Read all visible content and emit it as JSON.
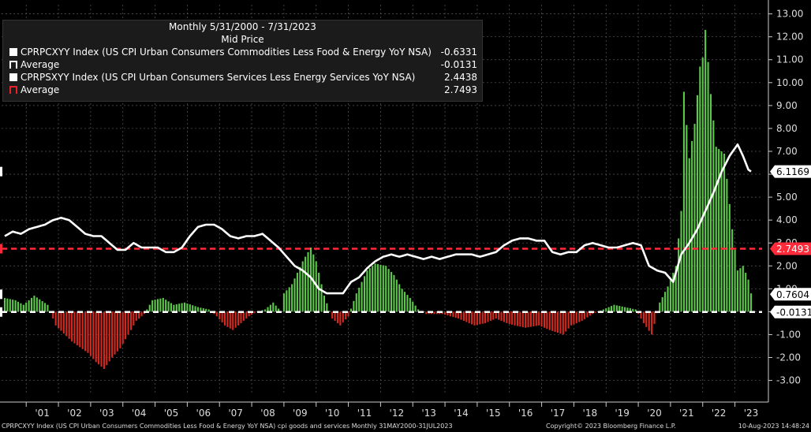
{
  "legend": {
    "header_line1": "Monthly 5/31/2000 - 7/31/2023",
    "header_line2": "Mid Price",
    "entries": [
      {
        "label": "CPRPCXYY Index (US CPI Urban Consumers Commodities Less Food & Energy YoY NSA)",
        "value": "-0.6331",
        "swatch": "solid-white"
      },
      {
        "label": "Average",
        "value": "-0.0131",
        "swatch": "dash-white"
      },
      {
        "label": "CPRPSXYY Index (US CPI Urban Consumers Services Less Energy Services YoY NSA)",
        "value": "2.4438",
        "swatch": "solid-white"
      },
      {
        "label": "Average",
        "value": "2.7493",
        "swatch": "dash-red"
      }
    ]
  },
  "footer": {
    "left": "CPRPCXYY Index (US CPI Urban Consumers Commodities Less Food & Energy YoY NSA) cpi goods and services  Monthly 31MAY2000-31JUL2023",
    "center": "Copyright© 2023 Bloomberg Finance L.P.",
    "right": "10-Aug-2023 14:48:24"
  },
  "colors": {
    "background": "#000000",
    "positive_bar": "#5cc94a",
    "negative_bar": "#d42a20",
    "services_line": "#ffffff",
    "services_avg": "#ff2a3a",
    "commodities_avg": "#ffffff",
    "grid": "#5a5a5a"
  },
  "chart_data": {
    "type": "bar",
    "x_range": [
      "2000-05",
      "2023-07"
    ],
    "ylim": [
      -3.6,
      13.4
    ],
    "grid": true,
    "y_ticks": [
      "13.00",
      "12.00",
      "11.00",
      "10.00",
      "9.00",
      "8.00",
      "7.00",
      "6.00",
      "5.00",
      "4.00",
      "3.00",
      "2.00",
      "1.00",
      "0.00",
      "-1.00",
      "-2.00",
      "-3.00"
    ],
    "y_tick_values": [
      13,
      12,
      11,
      10,
      9,
      8,
      7,
      6,
      5,
      4,
      3,
      2,
      1,
      0,
      -1,
      -2,
      -3
    ],
    "x_ticks": [
      "'01",
      "'02",
      "'03",
      "'04",
      "'05",
      "'06",
      "'07",
      "'08",
      "'09",
      "'10",
      "'11",
      "'12",
      "'13",
      "'14",
      "'15",
      "'16",
      "'17",
      "'18",
      "'19",
      "'20",
      "'21",
      "'22",
      "'23"
    ],
    "x_tick_years": [
      2001,
      2002,
      2003,
      2004,
      2005,
      2006,
      2007,
      2008,
      2009,
      2010,
      2011,
      2012,
      2013,
      2014,
      2015,
      2016,
      2017,
      2018,
      2019,
      2020,
      2021,
      2022,
      2023
    ],
    "series": [
      {
        "name": "CPRPCXYY Index (US CPI Urban Consumers Commodities Less Food & Energy YoY NSA)",
        "style": "bars",
        "anchors": [
          [
            "2000-05",
            0.6
          ],
          [
            "2000-09",
            0.5
          ],
          [
            "2000-12",
            0.3
          ],
          [
            "2001-04",
            0.7
          ],
          [
            "2001-09",
            0.3
          ],
          [
            "2001-12",
            -0.6
          ],
          [
            "2002-06",
            -1.3
          ],
          [
            "2002-12",
            -1.8
          ],
          [
            "2003-03",
            -2.2
          ],
          [
            "2003-06",
            -2.5
          ],
          [
            "2003-09",
            -2.0
          ],
          [
            "2003-12",
            -1.6
          ],
          [
            "2004-03",
            -1.0
          ],
          [
            "2004-06",
            -0.4
          ],
          [
            "2004-09",
            -0.1
          ],
          [
            "2004-12",
            0.5
          ],
          [
            "2005-04",
            0.6
          ],
          [
            "2005-08",
            0.3
          ],
          [
            "2005-12",
            0.4
          ],
          [
            "2006-05",
            0.2
          ],
          [
            "2006-09",
            0.1
          ],
          [
            "2006-12",
            -0.2
          ],
          [
            "2007-03",
            -0.6
          ],
          [
            "2007-06",
            -0.8
          ],
          [
            "2007-09",
            -0.5
          ],
          [
            "2007-12",
            -0.2
          ],
          [
            "2008-03",
            0.0
          ],
          [
            "2008-06",
            0.1
          ],
          [
            "2008-09",
            0.4
          ],
          [
            "2008-12",
            0.0
          ],
          [
            "2009-01",
            0.8
          ],
          [
            "2009-04",
            1.2
          ],
          [
            "2009-08",
            2.2
          ],
          [
            "2009-11",
            2.8
          ],
          [
            "2010-01",
            2.2
          ],
          [
            "2010-04",
            0.7
          ],
          [
            "2010-07",
            -0.3
          ],
          [
            "2010-10",
            -0.6
          ],
          [
            "2011-01",
            -0.2
          ],
          [
            "2011-04",
            0.8
          ],
          [
            "2011-08",
            1.8
          ],
          [
            "2011-11",
            2.1
          ],
          [
            "2012-03",
            2.0
          ],
          [
            "2012-06",
            1.6
          ],
          [
            "2012-09",
            1.0
          ],
          [
            "2012-12",
            0.6
          ],
          [
            "2013-03",
            0.1
          ],
          [
            "2013-06",
            -0.1
          ],
          [
            "2013-12",
            -0.1
          ],
          [
            "2014-06",
            -0.3
          ],
          [
            "2014-12",
            -0.6
          ],
          [
            "2015-04",
            -0.5
          ],
          [
            "2015-08",
            -0.3
          ],
          [
            "2015-12",
            -0.5
          ],
          [
            "2016-03",
            -0.6
          ],
          [
            "2016-07",
            -0.7
          ],
          [
            "2016-12",
            -0.6
          ],
          [
            "2017-04",
            -0.8
          ],
          [
            "2017-09",
            -1.0
          ],
          [
            "2017-12",
            -0.6
          ],
          [
            "2018-04",
            -0.4
          ],
          [
            "2018-08",
            -0.1
          ],
          [
            "2018-12",
            0.1
          ],
          [
            "2019-04",
            0.3
          ],
          [
            "2019-08",
            0.2
          ],
          [
            "2019-12",
            0.1
          ],
          [
            "2020-03",
            -0.5
          ],
          [
            "2020-06",
            -1.0
          ],
          [
            "2020-09",
            0.4
          ],
          [
            "2020-12",
            1.1
          ],
          [
            "2021-03",
            2.0
          ],
          [
            "2021-05",
            4.4
          ],
          [
            "2021-06",
            9.6
          ],
          [
            "2021-08",
            6.7
          ],
          [
            "2021-10",
            8.2
          ],
          [
            "2021-12",
            10.7
          ],
          [
            "2022-01",
            11.1
          ],
          [
            "2022-02",
            12.3
          ],
          [
            "2022-04",
            9.5
          ],
          [
            "2022-06",
            7.2
          ],
          [
            "2022-09",
            6.9
          ],
          [
            "2022-12",
            3.6
          ],
          [
            "2023-02",
            1.8
          ],
          [
            "2023-04",
            2.0
          ],
          [
            "2023-06",
            1.4
          ],
          [
            "2023-07",
            0.8
          ]
        ]
      },
      {
        "name": "CPRPSXYY Index (US CPI Urban Consumers Services Less Energy Services YoY NSA)",
        "style": "line",
        "anchors": [
          [
            "2000-05",
            3.3
          ],
          [
            "2000-08",
            3.5
          ],
          [
            "2000-11",
            3.4
          ],
          [
            "2001-02",
            3.6
          ],
          [
            "2001-05",
            3.7
          ],
          [
            "2001-08",
            3.8
          ],
          [
            "2001-11",
            4.0
          ],
          [
            "2002-02",
            4.1
          ],
          [
            "2002-05",
            4.0
          ],
          [
            "2002-08",
            3.7
          ],
          [
            "2002-11",
            3.4
          ],
          [
            "2003-02",
            3.3
          ],
          [
            "2003-05",
            3.3
          ],
          [
            "2003-08",
            3.0
          ],
          [
            "2003-11",
            2.7
          ],
          [
            "2004-02",
            2.7
          ],
          [
            "2004-05",
            3.0
          ],
          [
            "2004-08",
            2.8
          ],
          [
            "2004-11",
            2.8
          ],
          [
            "2005-02",
            2.8
          ],
          [
            "2005-05",
            2.6
          ],
          [
            "2005-08",
            2.6
          ],
          [
            "2005-11",
            2.8
          ],
          [
            "2006-02",
            3.3
          ],
          [
            "2006-05",
            3.7
          ],
          [
            "2006-08",
            3.8
          ],
          [
            "2006-11",
            3.8
          ],
          [
            "2007-02",
            3.6
          ],
          [
            "2007-05",
            3.3
          ],
          [
            "2007-08",
            3.2
          ],
          [
            "2007-11",
            3.3
          ],
          [
            "2008-02",
            3.3
          ],
          [
            "2008-05",
            3.4
          ],
          [
            "2008-08",
            3.1
          ],
          [
            "2008-11",
            2.8
          ],
          [
            "2009-02",
            2.4
          ],
          [
            "2009-05",
            2.0
          ],
          [
            "2009-08",
            1.8
          ],
          [
            "2009-11",
            1.5
          ],
          [
            "2010-02",
            1.0
          ],
          [
            "2010-05",
            0.8
          ],
          [
            "2010-08",
            0.8
          ],
          [
            "2010-11",
            0.8
          ],
          [
            "2011-02",
            1.3
          ],
          [
            "2011-05",
            1.5
          ],
          [
            "2011-08",
            1.9
          ],
          [
            "2011-11",
            2.2
          ],
          [
            "2012-02",
            2.4
          ],
          [
            "2012-05",
            2.5
          ],
          [
            "2012-08",
            2.4
          ],
          [
            "2012-11",
            2.5
          ],
          [
            "2013-02",
            2.4
          ],
          [
            "2013-05",
            2.3
          ],
          [
            "2013-08",
            2.4
          ],
          [
            "2013-11",
            2.3
          ],
          [
            "2014-02",
            2.4
          ],
          [
            "2014-05",
            2.5
          ],
          [
            "2014-08",
            2.5
          ],
          [
            "2014-11",
            2.5
          ],
          [
            "2015-02",
            2.4
          ],
          [
            "2015-05",
            2.5
          ],
          [
            "2015-08",
            2.6
          ],
          [
            "2015-11",
            2.9
          ],
          [
            "2016-02",
            3.1
          ],
          [
            "2016-05",
            3.2
          ],
          [
            "2016-08",
            3.2
          ],
          [
            "2016-11",
            3.1
          ],
          [
            "2017-02",
            3.1
          ],
          [
            "2017-05",
            2.6
          ],
          [
            "2017-08",
            2.5
          ],
          [
            "2017-11",
            2.6
          ],
          [
            "2018-02",
            2.6
          ],
          [
            "2018-05",
            2.9
          ],
          [
            "2018-08",
            3.0
          ],
          [
            "2018-11",
            2.9
          ],
          [
            "2019-02",
            2.8
          ],
          [
            "2019-05",
            2.8
          ],
          [
            "2019-08",
            2.9
          ],
          [
            "2019-11",
            3.0
          ],
          [
            "2020-02",
            2.9
          ],
          [
            "2020-05",
            2.0
          ],
          [
            "2020-08",
            1.8
          ],
          [
            "2020-11",
            1.7
          ],
          [
            "2021-02",
            1.3
          ],
          [
            "2021-05",
            2.5
          ],
          [
            "2021-08",
            3.0
          ],
          [
            "2021-11",
            3.6
          ],
          [
            "2022-02",
            4.4
          ],
          [
            "2022-05",
            5.2
          ],
          [
            "2022-08",
            6.1
          ],
          [
            "2022-11",
            6.8
          ],
          [
            "2023-02",
            7.3
          ],
          [
            "2023-04",
            6.8
          ],
          [
            "2023-06",
            6.2
          ],
          [
            "2023-07",
            6.1169
          ]
        ]
      },
      {
        "name": "Average",
        "style": "dashed-hline",
        "value": -0.0131
      },
      {
        "name": "Average",
        "style": "dashed-hline",
        "value": 2.7493
      }
    ],
    "right_axis_tags": [
      {
        "text": "6.1169",
        "value": 6.1169
      },
      {
        "text": "2.7493",
        "value": 2.7493
      },
      {
        "text": "0.7604",
        "value": 0.7604
      },
      {
        "text": "-0.0131",
        "value": -0.0131
      }
    ]
  }
}
